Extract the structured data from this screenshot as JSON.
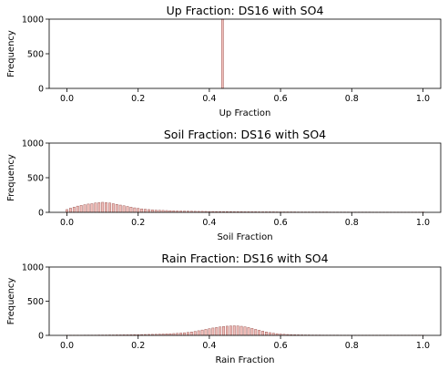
{
  "chart_data": [
    {
      "type": "bar",
      "title": "Up Fraction: DS16 with SO4",
      "xlabel": "Up Fraction",
      "ylabel": "Frequency",
      "xlim": [
        -0.05,
        1.05
      ],
      "ylim": [
        0,
        1000
      ],
      "xticks": [
        "0.0",
        "0.2",
        "0.4",
        "0.6",
        "0.8",
        "1.0"
      ],
      "yticks": [
        "0",
        "500",
        "1000"
      ],
      "bar_width": 0.004,
      "bar_color": "#f2c0bc",
      "bar_edge": "#a05c58",
      "x": [
        0.437
      ],
      "values": [
        1000
      ]
    },
    {
      "type": "bar",
      "title": "Soil Fraction: DS16 with SO4",
      "xlabel": "Soil Fraction",
      "ylabel": "Frequency",
      "xlim": [
        -0.05,
        1.05
      ],
      "ylim": [
        0,
        1000
      ],
      "xticks": [
        "0.0",
        "0.2",
        "0.4",
        "0.6",
        "0.8",
        "1.0"
      ],
      "yticks": [
        "0",
        "500",
        "1000"
      ],
      "bar_width": 0.004,
      "bar_color": "#f2c0bc",
      "bar_edge": "#a05c58",
      "x": [
        0.0,
        0.01,
        0.02,
        0.03,
        0.04,
        0.05,
        0.06,
        0.07,
        0.08,
        0.09,
        0.1,
        0.11,
        0.12,
        0.13,
        0.14,
        0.15,
        0.16,
        0.17,
        0.18,
        0.19,
        0.2,
        0.21,
        0.22,
        0.23,
        0.24,
        0.25,
        0.26,
        0.27,
        0.28,
        0.29,
        0.3,
        0.31,
        0.32,
        0.33,
        0.34,
        0.35,
        0.36,
        0.37,
        0.38,
        0.39,
        0.4,
        0.41,
        0.42,
        0.43,
        0.44,
        0.45,
        0.46,
        0.47,
        0.48,
        0.49,
        0.5,
        0.51,
        0.52,
        0.53,
        0.54,
        0.55,
        0.56,
        0.57,
        0.58,
        0.59,
        0.6,
        0.61,
        0.62,
        0.63,
        0.64,
        0.65,
        0.66,
        0.67,
        0.68,
        0.69,
        0.7,
        0.71,
        0.72,
        0.73,
        0.74,
        0.75,
        0.76,
        0.77,
        0.78,
        0.79,
        0.8,
        0.81,
        0.82,
        0.83,
        0.84,
        0.85,
        0.86,
        0.87,
        0.88,
        0.89,
        0.9,
        0.91,
        0.92,
        0.93,
        0.94,
        0.95,
        0.96,
        0.97,
        0.98,
        0.99,
        1.0
      ],
      "values": [
        40,
        60,
        75,
        90,
        100,
        110,
        120,
        125,
        135,
        140,
        145,
        140,
        135,
        125,
        115,
        105,
        95,
        85,
        75,
        65,
        58,
        50,
        45,
        40,
        36,
        32,
        30,
        28,
        26,
        24,
        22,
        20,
        19,
        18,
        17,
        16,
        15,
        14,
        14,
        13,
        12,
        12,
        11,
        11,
        10,
        10,
        10,
        9,
        9,
        9,
        8,
        8,
        8,
        8,
        7,
        7,
        7,
        7,
        7,
        6,
        6,
        6,
        6,
        6,
        6,
        5,
        5,
        5,
        5,
        5,
        5,
        5,
        5,
        5,
        4,
        4,
        4,
        4,
        4,
        4,
        4,
        4,
        4,
        4,
        4,
        4,
        3,
        3,
        3,
        3,
        3,
        3,
        3,
        3,
        3,
        3,
        3,
        3,
        3,
        3,
        5
      ]
    },
    {
      "type": "bar",
      "title": "Rain Fraction: DS16 with SO4",
      "xlabel": "Rain Fraction",
      "ylabel": "Frequency",
      "xlim": [
        -0.05,
        1.05
      ],
      "ylim": [
        0,
        1000
      ],
      "xticks": [
        "0.0",
        "0.2",
        "0.4",
        "0.6",
        "0.8",
        "1.0"
      ],
      "yticks": [
        "0",
        "500",
        "1000"
      ],
      "bar_width": 0.004,
      "bar_color": "#f2c0bc",
      "bar_edge": "#a05c58",
      "x": [
        0.0,
        0.01,
        0.02,
        0.03,
        0.04,
        0.05,
        0.06,
        0.07,
        0.08,
        0.09,
        0.1,
        0.11,
        0.12,
        0.13,
        0.14,
        0.15,
        0.16,
        0.17,
        0.18,
        0.19,
        0.2,
        0.21,
        0.22,
        0.23,
        0.24,
        0.25,
        0.26,
        0.27,
        0.28,
        0.29,
        0.3,
        0.31,
        0.32,
        0.33,
        0.34,
        0.35,
        0.36,
        0.37,
        0.38,
        0.39,
        0.4,
        0.41,
        0.42,
        0.43,
        0.44,
        0.45,
        0.46,
        0.47,
        0.48,
        0.49,
        0.5,
        0.51,
        0.52,
        0.53,
        0.54,
        0.55,
        0.56,
        0.57,
        0.58,
        0.59,
        0.6,
        0.61,
        0.62,
        0.63,
        0.64,
        0.65,
        0.66,
        0.67,
        0.68,
        0.69,
        0.7,
        0.71,
        0.72,
        0.73,
        0.74,
        0.75,
        0.76,
        0.77,
        0.78,
        0.79,
        0.8,
        0.81,
        0.82,
        0.83,
        0.84,
        0.85,
        0.86,
        0.87,
        0.88,
        0.89,
        0.9,
        0.91,
        0.92,
        0.93,
        0.94,
        0.95,
        0.96,
        0.97,
        0.98,
        0.99,
        1.0
      ],
      "values": [
        3,
        3,
        3,
        3,
        3,
        4,
        4,
        4,
        4,
        5,
        5,
        5,
        6,
        6,
        7,
        7,
        8,
        8,
        9,
        10,
        11,
        12,
        13,
        14,
        15,
        16,
        18,
        20,
        22,
        24,
        27,
        30,
        34,
        38,
        43,
        50,
        58,
        68,
        78,
        88,
        98,
        108,
        116,
        124,
        130,
        135,
        138,
        140,
        138,
        133,
        125,
        115,
        102,
        88,
        75,
        62,
        50,
        40,
        32,
        25,
        20,
        16,
        13,
        11,
        9,
        8,
        7,
        6,
        6,
        5,
        5,
        5,
        4,
        4,
        4,
        4,
        4,
        3,
        3,
        3,
        3,
        3,
        3,
        3,
        3,
        3,
        3,
        3,
        3,
        3,
        3,
        3,
        3,
        3,
        3,
        3,
        3,
        3,
        3,
        3,
        3
      ]
    }
  ]
}
